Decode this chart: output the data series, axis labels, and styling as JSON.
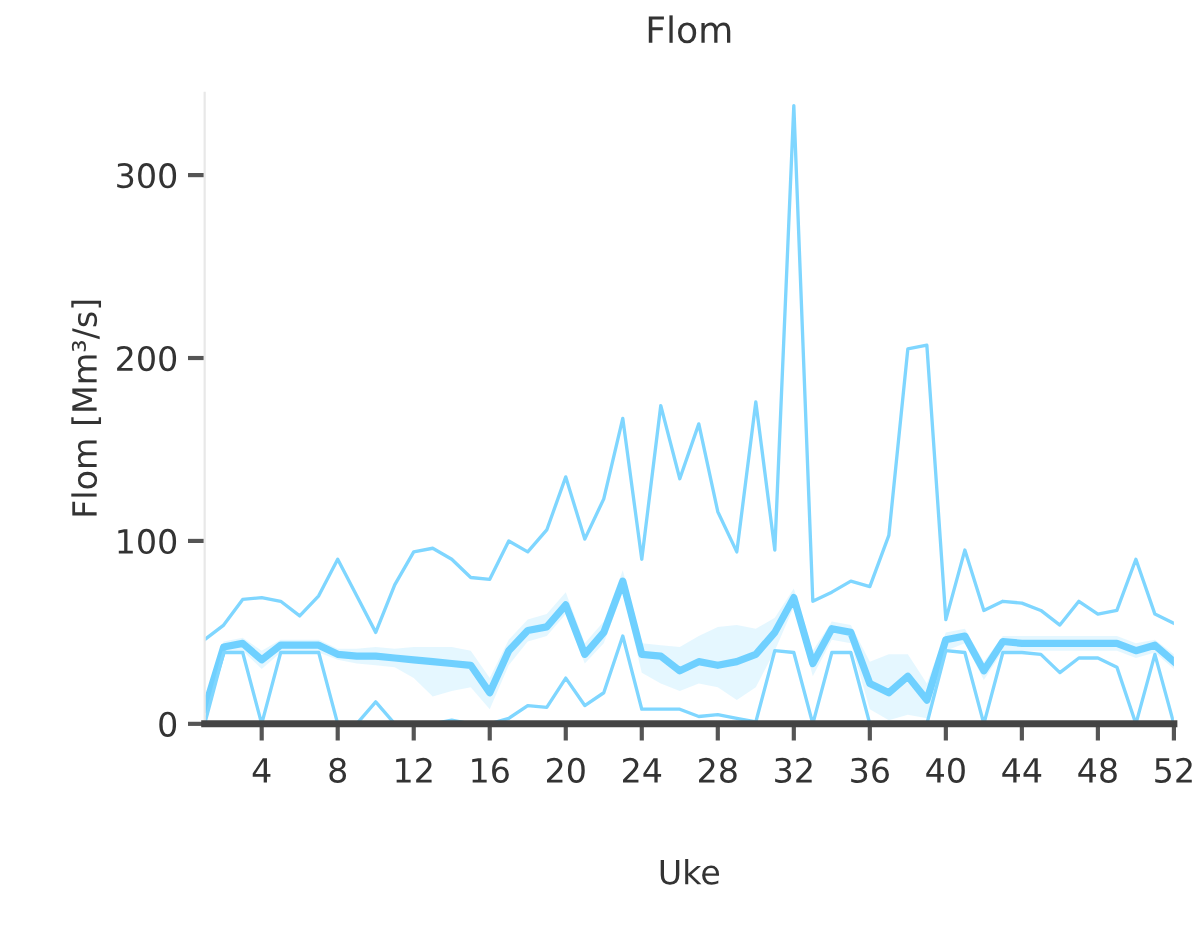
{
  "chart_data": {
    "type": "line",
    "title": "Flom",
    "xlabel": "Uke",
    "ylabel": "Flom [Mm³/s]",
    "x": [
      1,
      2,
      3,
      4,
      5,
      6,
      7,
      8,
      9,
      10,
      11,
      12,
      13,
      14,
      15,
      16,
      17,
      18,
      19,
      20,
      21,
      22,
      23,
      24,
      25,
      26,
      27,
      28,
      29,
      30,
      31,
      32,
      33,
      34,
      35,
      36,
      37,
      38,
      39,
      40,
      41,
      42,
      43,
      44,
      45,
      46,
      47,
      48,
      49,
      50,
      51,
      52
    ],
    "xlim": [
      1,
      52
    ],
    "xticks": [
      4,
      8,
      12,
      16,
      20,
      24,
      28,
      32,
      36,
      40,
      44,
      48,
      52
    ],
    "ylim": [
      0,
      345
    ],
    "yticks": [
      0,
      100,
      200,
      300
    ],
    "grid": false,
    "legend": false,
    "series": [
      {
        "color": "#7fd6ff",
        "values": [
          46,
          54,
          68,
          69,
          67,
          59,
          70,
          90,
          70,
          50,
          76,
          94,
          96,
          90,
          80,
          79,
          100,
          94,
          106,
          135,
          101,
          123,
          167,
          90,
          174,
          134,
          164,
          116,
          94,
          176,
          95,
          338,
          67,
          72,
          78,
          75,
          103,
          205,
          207,
          57,
          95,
          62,
          67,
          66,
          62,
          54,
          67,
          60,
          62,
          90,
          60,
          55
        ]
      },
      {
        "color": "#6fd0ff",
        "values": [
          8,
          42,
          44,
          35,
          43,
          43,
          43,
          38,
          37,
          37,
          36,
          35,
          34,
          33,
          32,
          17,
          40,
          51,
          53,
          65,
          38,
          50,
          78,
          38,
          37,
          29,
          34,
          32,
          34,
          38,
          50,
          69,
          33,
          52,
          50,
          22,
          17,
          26,
          13,
          46,
          48,
          29,
          45,
          44,
          44,
          44,
          44,
          44,
          44,
          40,
          43,
          34
        ],
        "lower": [
          2,
          38,
          40,
          30,
          39,
          39,
          39,
          35,
          33,
          32,
          31,
          25,
          15,
          18,
          20,
          8,
          32,
          45,
          48,
          60,
          33,
          44,
          72,
          28,
          22,
          18,
          22,
          20,
          13,
          20,
          40,
          64,
          26,
          46,
          44,
          8,
          2,
          5,
          3,
          40,
          44,
          24,
          40,
          40,
          40,
          40,
          40,
          40,
          40,
          36,
          39,
          30
        ],
        "upper": [
          12,
          45,
          47,
          40,
          46,
          46,
          46,
          41,
          41,
          42,
          41,
          42,
          42,
          42,
          40,
          25,
          46,
          57,
          60,
          72,
          44,
          56,
          84,
          44,
          43,
          42,
          48,
          53,
          54,
          52,
          58,
          74,
          40,
          56,
          54,
          34,
          38,
          38,
          22,
          50,
          52,
          34,
          48,
          48,
          48,
          48,
          48,
          48,
          48,
          44,
          46,
          38
        ]
      },
      {
        "color": "#7fd6ff",
        "values": [
          0,
          39,
          39,
          0,
          39,
          39,
          39,
          0,
          0,
          12,
          0,
          0,
          0,
          2,
          0,
          0,
          3,
          10,
          9,
          25,
          10,
          17,
          48,
          8,
          8,
          8,
          4,
          5,
          3,
          1,
          40,
          39,
          0,
          39,
          39,
          0,
          0,
          0,
          0,
          40,
          39,
          0,
          39,
          39,
          38,
          28,
          36,
          36,
          31,
          0,
          38,
          0
        ]
      }
    ]
  }
}
